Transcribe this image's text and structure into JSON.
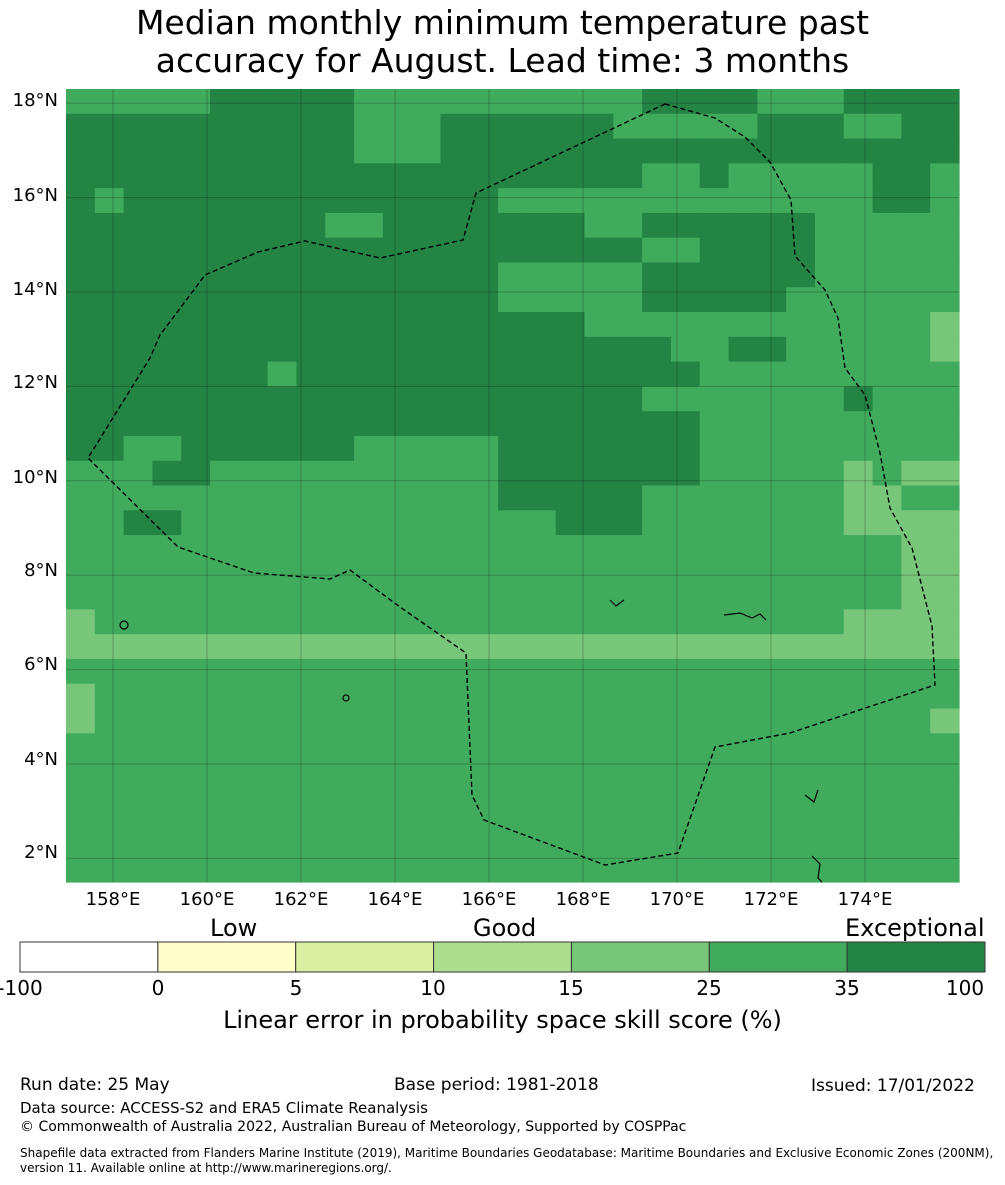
{
  "title": {
    "line1": "Median monthly minimum temperature past",
    "line2": "accuracy for August. Lead time: 3 months"
  },
  "map": {
    "lat_range": [
      1.5,
      18.3
    ],
    "lon_range": [
      157.0,
      176.0
    ],
    "lat_labels": [
      "18°N",
      "16°N",
      "14°N",
      "12°N",
      "10°N",
      "8°N",
      "6°N",
      "4°N",
      "2°N"
    ],
    "lat_values": [
      18,
      16,
      14,
      12,
      10,
      8,
      6,
      4,
      2
    ],
    "lon_labels": [
      "158°E",
      "160°E",
      "162°E",
      "164°E",
      "166°E",
      "168°E",
      "170°E",
      "172°E",
      "174°E"
    ],
    "lon_values": [
      158,
      160,
      162,
      164,
      166,
      168,
      170,
      172,
      174
    ],
    "gridlines": true,
    "boundary": "EEZ dashed outline",
    "skill_grid": [
      "4444455555444444444455554445555",
      "5555555555444555555444445554455",
      "5555555555444555555555555555555",
      "5555555555555555555544544444554",
      "5455555555555554444444444444554",
      "5555555554455555554455555544444",
      "5555555555555555555544555544444",
      "5555555555555554444455555544444",
      "5555555555555554444455555444444",
      "5555555555555555554444444444443",
      "5555555555555555555554455444443",
      "5555555455555555555555444444444",
      "5555555555555555555544444445444",
      "5555555555555555555555444444444",
      "5544555555444445555555444444444",
      "4445544444444445555555444443433",
      "4444444444444445555544444443344",
      "4455444444444444455544444443333",
      "4444444444444444444444444444433",
      "4444444444444444444444444444433",
      "4444444444444444444444444444433",
      "3444444444444444444444444443333",
      "3333333333333333333333333333333",
      "4444444444444444444444444444444",
      "3444444444444444444444444444444",
      "3444444444444444444444444444443",
      "4444444444444444444444444444444",
      "4444444444444444444444444444444",
      "4444444444444444444444444444444",
      "4444444444444444444444444444444",
      "4444444444444444444444444444444",
      "4444444444444444444444444444444"
    ]
  },
  "colorbar": {
    "categories": [
      "Low",
      "Good",
      "Exceptional"
    ],
    "ticks": [
      "-100",
      "0",
      "5",
      "10",
      "15",
      "25",
      "35",
      "100"
    ],
    "colors": [
      "#ffffff",
      "#ffffcc",
      "#d9f0a3",
      "#addd8e",
      "#78c679",
      "#41ab5d",
      "#238443"
    ],
    "title": "Linear error in probability space skill score (%)"
  },
  "footer": {
    "run_date": "Run date: 25 May",
    "base_period": "Base period: 1981-2018",
    "issued": "Issued: 17/01/2022",
    "data_source": "Data source: ACCESS-S2 and ERA5 Climate Reanalysis",
    "copyright": "© Commonwealth of Australia 2022, Australian Bureau of Meteorology, Supported by COSPPac",
    "shapefile_line1": "Shapefile data extracted from Flanders Marine Institute (2019), Maritime Boundaries Geodatabase: Maritime Boundaries and Exclusive Economic Zones (200NM),",
    "shapefile_line2": "version 11. Available online at http://www.marineregions.org/."
  }
}
